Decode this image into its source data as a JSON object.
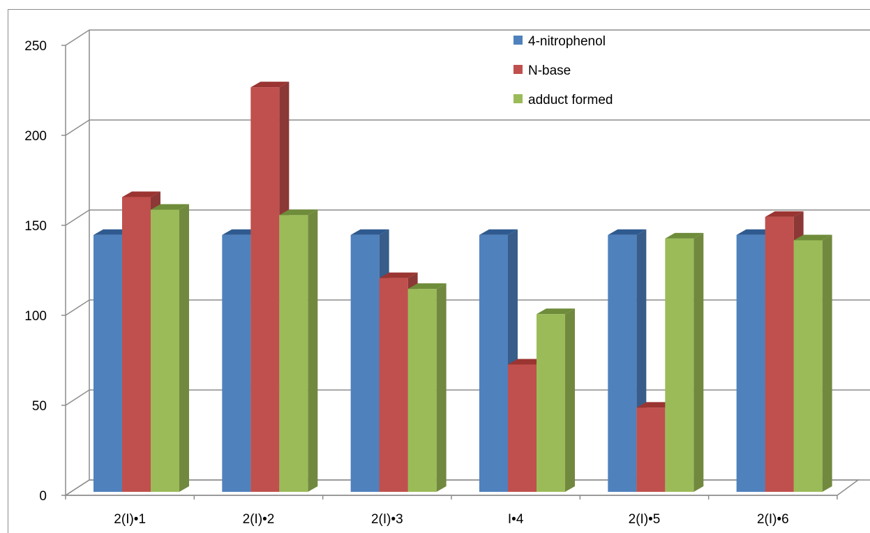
{
  "chart_data": {
    "type": "bar",
    "style": "3d-clustered-column",
    "categories": [
      "2(I)•1",
      "2(I)•2",
      "2(I)•3",
      "I•4",
      "2(I)•5",
      "2(I)•6"
    ],
    "series": [
      {
        "name": "4-nitrophenol",
        "values": [
          139,
          139,
          139,
          139,
          139,
          139
        ],
        "color": "#4F81BD",
        "side_color": "#385D8A",
        "top_color": "#2F5A8F"
      },
      {
        "name": "N-base",
        "values": [
          160,
          221,
          115,
          67,
          43,
          149
        ],
        "color": "#C0504D",
        "side_color": "#8C3836",
        "top_color": "#9A3532"
      },
      {
        "name": "adduct formed",
        "values": [
          153,
          150,
          109,
          95,
          137,
          136
        ],
        "color": "#9BBB59",
        "side_color": "#71893F",
        "top_color": "#6E8C3A"
      }
    ],
    "y_ticks": [
      "0",
      "50",
      "100",
      "150",
      "200",
      "250"
    ],
    "ylim": [
      0,
      250
    ],
    "grid": true,
    "legend_position": "top-right",
    "title": "",
    "xlabel": "",
    "ylabel": ""
  }
}
